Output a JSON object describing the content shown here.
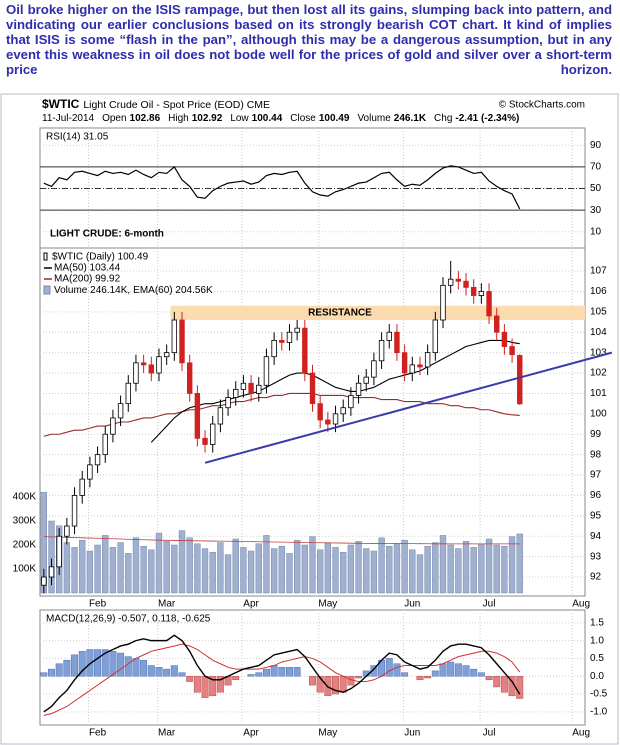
{
  "article": {
    "text": "Oil broke higher on the ISIS rampage, but then lost all its gains, slumping back into pattern, and vindicating our earlier conclusions based on its strongly bearish COT chart. It kind of implies that ISIS is some “flash in the pan”, although this may be a dangerous assumption, but in any event this weakness in oil does not bode well for the prices of gold and silver over a short-term price horizon."
  },
  "chart_data": [
    {
      "type": "line",
      "label": "RSI(14) 31.05",
      "color": "#000000",
      "values": [
        55,
        52,
        60,
        58,
        65,
        66,
        64,
        62,
        66,
        64,
        65,
        63,
        67,
        63,
        60,
        65,
        64,
        70,
        58,
        52,
        42,
        41,
        48,
        52,
        55,
        56,
        57,
        54,
        56,
        62,
        64,
        63,
        65,
        66,
        55,
        47,
        44,
        43,
        47,
        49,
        52,
        55,
        56,
        60,
        64,
        65,
        58,
        52,
        54,
        53,
        58,
        64,
        69,
        71,
        70,
        67,
        64,
        65,
        57,
        52,
        48,
        45,
        31.05
      ],
      "ylim": [
        -5,
        106
      ],
      "yticks": [
        90,
        70,
        50,
        30,
        10
      ],
      "levels": [
        70,
        50,
        30
      ],
      "grid": true
    },
    {
      "type": "candlestick",
      "title": "$WTIC",
      "subtitle": "Light Crude Oil - Spot Price (EOD) CME",
      "source": "© StockCharts.com",
      "date": "11-Jul-2014",
      "stats": [
        {
          "label": "Open",
          "value": 102.86
        },
        {
          "label": "High",
          "value": 102.92
        },
        {
          "label": "Low",
          "value": 100.44
        },
        {
          "label": "Close",
          "value": 100.49
        },
        {
          "label": "Volume",
          "value": 246100,
          "value_label": "246.1K"
        },
        {
          "label": "Chg",
          "value": -2.41,
          "value_label": "-2.41 (-2.34%)"
        }
      ],
      "annotation_title": "LIGHT CRUDE: 6-month",
      "candle_label": "$WTIC (Daily) 100.49",
      "categories": [
        null,
        null,
        null,
        null,
        null,
        null,
        null,
        "Feb",
        null,
        null,
        null,
        null,
        null,
        null,
        null,
        null,
        "Mar",
        null,
        null,
        null,
        null,
        null,
        null,
        null,
        null,
        null,
        null,
        "Apr",
        null,
        null,
        null,
        null,
        null,
        null,
        null,
        null,
        null,
        "May",
        null,
        null,
        null,
        null,
        null,
        null,
        null,
        null,
        null,
        null,
        "Jun",
        null,
        null,
        null,
        null,
        null,
        null,
        null,
        null,
        null,
        "Jul",
        null,
        null,
        null,
        null,
        null,
        null,
        null,
        null,
        null,
        null,
        null,
        "Aug"
      ],
      "open": [
        91.6,
        92.0,
        92.5,
        94.0,
        94.5,
        96.0,
        96.8,
        97.5,
        98.0,
        99.0,
        99.8,
        100.5,
        101.5,
        102.5,
        102.4,
        102.0,
        102.8,
        103.0,
        104.6,
        102.5,
        101.0,
        98.8,
        98.5,
        99.5,
        100.3,
        100.8,
        101.2,
        101.5,
        101.0,
        101.4,
        102.8,
        103.6,
        103.5,
        104.0,
        104.2,
        102.0,
        100.5,
        99.7,
        99.5,
        100.0,
        100.3,
        100.9,
        101.5,
        101.8,
        102.6,
        103.6,
        104.0,
        103.0,
        102.0,
        102.4,
        102.3,
        103.0,
        104.6,
        106.3,
        106.6,
        106.5,
        106.2,
        105.8,
        106.0,
        104.8,
        104.0,
        103.3,
        102.86,
        null,
        null,
        null,
        null,
        null,
        null,
        null,
        null
      ],
      "high": [
        92.4,
        92.9,
        94.4,
        94.9,
        96.4,
        97.2,
        97.9,
        98.4,
        99.4,
        100.2,
        100.9,
        101.9,
        102.9,
        102.9,
        102.8,
        103.2,
        103.4,
        105.0,
        105.0,
        102.9,
        101.4,
        99.2,
        99.9,
        100.7,
        101.2,
        101.6,
        101.9,
        101.9,
        101.8,
        103.2,
        104.0,
        104.0,
        104.4,
        104.6,
        104.6,
        102.4,
        100.9,
        100.1,
        100.4,
        100.7,
        101.3,
        101.9,
        102.2,
        103.0,
        104.0,
        104.4,
        104.4,
        103.4,
        102.8,
        102.8,
        103.4,
        105.0,
        106.7,
        107.5,
        107.0,
        106.9,
        106.6,
        106.4,
        106.4,
        105.2,
        104.4,
        103.7,
        102.92,
        null,
        null,
        null,
        null,
        null,
        null,
        null,
        null
      ],
      "low": [
        91.2,
        91.6,
        92.1,
        93.6,
        94.1,
        95.6,
        96.4,
        97.1,
        97.6,
        98.6,
        99.4,
        100.1,
        101.1,
        102.0,
        101.6,
        101.6,
        102.4,
        102.6,
        102.1,
        100.6,
        98.4,
        98.1,
        98.1,
        99.1,
        99.9,
        100.4,
        100.8,
        100.6,
        100.6,
        101.0,
        102.4,
        103.1,
        103.1,
        103.6,
        101.6,
        100.1,
        99.3,
        99.1,
        99.1,
        99.6,
        99.9,
        100.5,
        101.1,
        101.4,
        102.2,
        103.2,
        102.6,
        101.6,
        101.6,
        101.9,
        101.9,
        102.6,
        104.2,
        105.9,
        106.1,
        105.8,
        105.4,
        105.4,
        104.4,
        103.6,
        102.9,
        102.5,
        100.44,
        null,
        null,
        null,
        null,
        null,
        null,
        null,
        null
      ],
      "close": [
        92.0,
        92.5,
        94.0,
        94.5,
        96.0,
        96.8,
        97.5,
        98.0,
        99.0,
        99.8,
        100.5,
        101.5,
        102.5,
        102.4,
        102.0,
        102.8,
        103.0,
        104.6,
        102.5,
        101.0,
        98.8,
        98.5,
        99.5,
        100.3,
        100.8,
        101.2,
        101.5,
        101.0,
        101.4,
        102.8,
        103.6,
        103.5,
        104.0,
        104.2,
        102.0,
        100.5,
        99.7,
        99.5,
        100.0,
        100.3,
        100.9,
        101.5,
        101.8,
        102.6,
        103.6,
        104.0,
        103.0,
        102.0,
        102.4,
        102.3,
        103.0,
        104.6,
        106.3,
        106.6,
        106.5,
        106.2,
        105.8,
        106.0,
        104.8,
        104.0,
        103.3,
        102.9,
        100.49,
        null,
        null,
        null,
        null,
        null,
        null,
        null,
        null
      ],
      "series": [
        {
          "name": "Volume 246.14K,",
          "color": "#9fb0d0",
          "axis": "y2",
          "style": "bar",
          "values": [
            420000,
            300000,
            280000,
            210000,
            190000,
            220000,
            175000,
            200000,
            240000,
            190000,
            210000,
            165000,
            230000,
            195000,
            180000,
            250000,
            215000,
            200000,
            260000,
            230000,
            205000,
            185000,
            170000,
            210000,
            160000,
            225000,
            190000,
            175000,
            205000,
            240000,
            185000,
            195000,
            165000,
            220000,
            200000,
            235000,
            180000,
            210000,
            190000,
            170000,
            200000,
            215000,
            185000,
            175000,
            230000,
            195000,
            205000,
            220000,
            180000,
            160000,
            195000,
            210000,
            240000,
            200000,
            185000,
            215000,
            190000,
            205000,
            225000,
            200000,
            195000,
            235000,
            246140,
            null,
            null,
            null,
            null,
            null,
            null,
            null,
            null
          ]
        },
        {
          "name": "EMA(60) 204.56K",
          "color": "#c04040",
          "axis": "y2",
          "values": [
            235000,
            234000,
            233000,
            232000,
            231000,
            230000,
            229000,
            228000,
            227000,
            226000,
            225000,
            224000,
            223000,
            222000,
            221000,
            220000,
            219500,
            219000,
            218500,
            218000,
            217500,
            217000,
            216500,
            216000,
            215500,
            215000,
            214500,
            214000,
            213500,
            213000,
            212500,
            212000,
            211500,
            211000,
            210500,
            210000,
            209500,
            209000,
            208500,
            208000,
            207500,
            207000,
            206800,
            206600,
            206400,
            206200,
            206000,
            205800,
            205600,
            205400,
            205200,
            205000,
            204900,
            204800,
            204700,
            204650,
            204600,
            204600,
            204580,
            204570,
            204560,
            204560,
            204560,
            null,
            null,
            null,
            null,
            null,
            null,
            null,
            null
          ]
        },
        {
          "name": "MA(200) 99.92",
          "color": "#9a2a2a",
          "values": [
            98.9,
            99.0,
            99.0,
            99.1,
            99.2,
            99.2,
            99.3,
            99.4,
            99.4,
            99.5,
            99.6,
            99.6,
            99.7,
            99.8,
            99.8,
            99.9,
            100.0,
            100.0,
            100.1,
            100.2,
            100.2,
            100.3,
            100.4,
            100.4,
            100.5,
            100.6,
            100.6,
            100.7,
            100.8,
            100.8,
            100.9,
            100.9,
            101.0,
            101.0,
            101.0,
            101.0,
            100.9,
            100.9,
            100.9,
            100.9,
            100.8,
            100.8,
            100.8,
            100.8,
            100.7,
            100.7,
            100.7,
            100.6,
            100.6,
            100.6,
            100.5,
            100.5,
            100.5,
            100.4,
            100.4,
            100.3,
            100.3,
            100.2,
            100.2,
            100.1,
            100.0,
            99.95,
            99.92,
            null,
            null,
            null,
            null,
            null,
            null,
            null,
            null
          ]
        },
        {
          "name": "MA(50) 103.44",
          "color": "#000000",
          "values": [
            null,
            null,
            null,
            null,
            null,
            null,
            null,
            null,
            null,
            null,
            null,
            null,
            null,
            null,
            98.6,
            99.0,
            99.4,
            99.8,
            100.1,
            100.3,
            100.4,
            100.5,
            100.5,
            100.6,
            100.7,
            100.8,
            100.9,
            101.0,
            101.1,
            101.3,
            101.5,
            101.7,
            101.9,
            102.0,
            102.0,
            101.9,
            101.7,
            101.5,
            101.3,
            101.2,
            101.1,
            101.1,
            101.2,
            101.3,
            101.5,
            101.7,
            101.8,
            101.9,
            102.0,
            102.1,
            102.3,
            102.5,
            102.7,
            102.9,
            103.1,
            103.3,
            103.4,
            103.5,
            103.6,
            103.6,
            103.6,
            103.5,
            103.44,
            null,
            null,
            null,
            null,
            null,
            null,
            null,
            null
          ]
        }
      ],
      "ylim": [
        91.07,
        108.13
      ],
      "yticks": [
        92,
        93,
        94,
        95,
        96,
        97,
        98,
        99,
        100,
        101,
        102,
        103,
        104,
        105,
        106,
        107
      ],
      "y2lim": [
        -12500,
        1437500
      ],
      "y2ticks": [
        {
          "value": 400000,
          "label": "400K"
        },
        {
          "value": 300000,
          "label": "300K"
        },
        {
          "value": 200000,
          "label": "200K"
        },
        {
          "value": 100000,
          "label": "100K"
        }
      ],
      "resistance": {
        "label": "RESISTANCE",
        "range": [
          104.6,
          105.3
        ],
        "start": 17,
        "color": "#fcdcae"
      },
      "trendline": {
        "points": [
          [
            21,
            97.6
          ],
          [
            74,
            103.0
          ]
        ],
        "color": "#3a3aa8"
      },
      "grid": true
    },
    {
      "type": "macd",
      "label": "MACD(12,26,9) -0.507, 0.118, -0.625",
      "macd": [
        -1.0,
        -0.85,
        -0.6,
        -0.4,
        -0.1,
        0.15,
        0.35,
        0.5,
        0.65,
        0.75,
        0.85,
        0.9,
        1.0,
        1.05,
        1.0,
        1.0,
        1.0,
        1.15,
        1.0,
        0.7,
        0.3,
        0.0,
        -0.1,
        -0.1,
        0.0,
        0.1,
        0.2,
        0.25,
        0.3,
        0.45,
        0.6,
        0.65,
        0.7,
        0.75,
        0.55,
        0.25,
        -0.05,
        -0.3,
        -0.4,
        -0.45,
        -0.35,
        -0.2,
        0.0,
        0.2,
        0.45,
        0.65,
        0.6,
        0.4,
        0.3,
        0.2,
        0.25,
        0.45,
        0.7,
        0.85,
        0.9,
        0.9,
        0.85,
        0.8,
        0.6,
        0.35,
        0.1,
        -0.15,
        -0.507
      ],
      "signal": [
        -1.1,
        -1.05,
        -0.95,
        -0.85,
        -0.7,
        -0.55,
        -0.4,
        -0.25,
        -0.1,
        0.05,
        0.2,
        0.35,
        0.5,
        0.6,
        0.7,
        0.75,
        0.8,
        0.85,
        0.9,
        0.85,
        0.75,
        0.6,
        0.45,
        0.35,
        0.25,
        0.2,
        0.2,
        0.2,
        0.2,
        0.25,
        0.3,
        0.4,
        0.45,
        0.5,
        0.55,
        0.5,
        0.4,
        0.25,
        0.1,
        0.0,
        -0.1,
        -0.15,
        -0.15,
        -0.1,
        0.0,
        0.15,
        0.25,
        0.3,
        0.3,
        0.3,
        0.3,
        0.3,
        0.35,
        0.45,
        0.55,
        0.6,
        0.65,
        0.7,
        0.7,
        0.65,
        0.55,
        0.4,
        0.118
      ],
      "histogram": [
        0.1,
        0.2,
        0.35,
        0.45,
        0.6,
        0.7,
        0.75,
        0.75,
        0.75,
        0.7,
        0.65,
        0.55,
        0.5,
        0.45,
        0.3,
        0.25,
        0.2,
        0.3,
        0.1,
        -0.15,
        -0.45,
        -0.6,
        -0.55,
        -0.45,
        -0.25,
        -0.1,
        0,
        0.05,
        0.1,
        0.2,
        0.3,
        0.25,
        0.25,
        0.25,
        0,
        -0.25,
        -0.45,
        -0.55,
        -0.5,
        -0.45,
        -0.25,
        -0.05,
        0.15,
        0.3,
        0.45,
        0.5,
        0.35,
        0.1,
        0,
        -0.1,
        -0.05,
        0.15,
        0.35,
        0.4,
        0.35,
        0.3,
        0.2,
        0.1,
        -0.1,
        -0.3,
        -0.45,
        -0.55,
        -0.625
      ],
      "colors": {
        "macd": "#000000",
        "signal": "#d03030",
        "up": "#7f9fd8",
        "down": "#e48080"
      },
      "ylim": [
        -1.37,
        1.86
      ],
      "yticks": [
        1.5,
        {
          "value": 1,
          "label": "1.0"
        },
        0.5,
        {
          "value": 0,
          "label": "0.0"
        },
        -0.5,
        {
          "value": -1,
          "label": "-1.0"
        }
      ],
      "grid": true
    }
  ]
}
